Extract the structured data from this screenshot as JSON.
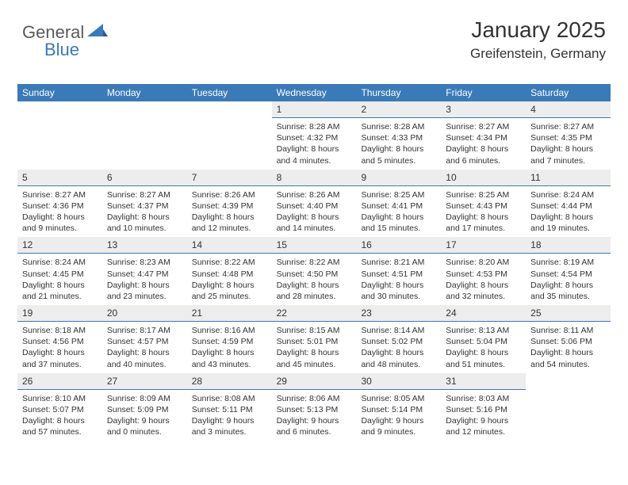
{
  "logo": {
    "general": "General",
    "blue": "Blue"
  },
  "header": {
    "month_title": "January 2025",
    "location": "Greifenstein, Germany"
  },
  "colors": {
    "header_bg": "#3b7ab8",
    "header_text": "#ffffff",
    "daynum_bg": "#ededed",
    "daynum_border": "#3b7ab8",
    "body_text": "#333333",
    "logo_gray": "#5a5a5a",
    "logo_blue": "#3b7ab8"
  },
  "day_headers": [
    "Sunday",
    "Monday",
    "Tuesday",
    "Wednesday",
    "Thursday",
    "Friday",
    "Saturday"
  ],
  "weeks": [
    [
      {
        "num": "",
        "sunrise": "",
        "sunset": "",
        "daylight": ""
      },
      {
        "num": "",
        "sunrise": "",
        "sunset": "",
        "daylight": ""
      },
      {
        "num": "",
        "sunrise": "",
        "sunset": "",
        "daylight": ""
      },
      {
        "num": "1",
        "sunrise": "Sunrise: 8:28 AM",
        "sunset": "Sunset: 4:32 PM",
        "daylight": "Daylight: 8 hours and 4 minutes."
      },
      {
        "num": "2",
        "sunrise": "Sunrise: 8:28 AM",
        "sunset": "Sunset: 4:33 PM",
        "daylight": "Daylight: 8 hours and 5 minutes."
      },
      {
        "num": "3",
        "sunrise": "Sunrise: 8:27 AM",
        "sunset": "Sunset: 4:34 PM",
        "daylight": "Daylight: 8 hours and 6 minutes."
      },
      {
        "num": "4",
        "sunrise": "Sunrise: 8:27 AM",
        "sunset": "Sunset: 4:35 PM",
        "daylight": "Daylight: 8 hours and 7 minutes."
      }
    ],
    [
      {
        "num": "5",
        "sunrise": "Sunrise: 8:27 AM",
        "sunset": "Sunset: 4:36 PM",
        "daylight": "Daylight: 8 hours and 9 minutes."
      },
      {
        "num": "6",
        "sunrise": "Sunrise: 8:27 AM",
        "sunset": "Sunset: 4:37 PM",
        "daylight": "Daylight: 8 hours and 10 minutes."
      },
      {
        "num": "7",
        "sunrise": "Sunrise: 8:26 AM",
        "sunset": "Sunset: 4:39 PM",
        "daylight": "Daylight: 8 hours and 12 minutes."
      },
      {
        "num": "8",
        "sunrise": "Sunrise: 8:26 AM",
        "sunset": "Sunset: 4:40 PM",
        "daylight": "Daylight: 8 hours and 14 minutes."
      },
      {
        "num": "9",
        "sunrise": "Sunrise: 8:25 AM",
        "sunset": "Sunset: 4:41 PM",
        "daylight": "Daylight: 8 hours and 15 minutes."
      },
      {
        "num": "10",
        "sunrise": "Sunrise: 8:25 AM",
        "sunset": "Sunset: 4:43 PM",
        "daylight": "Daylight: 8 hours and 17 minutes."
      },
      {
        "num": "11",
        "sunrise": "Sunrise: 8:24 AM",
        "sunset": "Sunset: 4:44 PM",
        "daylight": "Daylight: 8 hours and 19 minutes."
      }
    ],
    [
      {
        "num": "12",
        "sunrise": "Sunrise: 8:24 AM",
        "sunset": "Sunset: 4:45 PM",
        "daylight": "Daylight: 8 hours and 21 minutes."
      },
      {
        "num": "13",
        "sunrise": "Sunrise: 8:23 AM",
        "sunset": "Sunset: 4:47 PM",
        "daylight": "Daylight: 8 hours and 23 minutes."
      },
      {
        "num": "14",
        "sunrise": "Sunrise: 8:22 AM",
        "sunset": "Sunset: 4:48 PM",
        "daylight": "Daylight: 8 hours and 25 minutes."
      },
      {
        "num": "15",
        "sunrise": "Sunrise: 8:22 AM",
        "sunset": "Sunset: 4:50 PM",
        "daylight": "Daylight: 8 hours and 28 minutes."
      },
      {
        "num": "16",
        "sunrise": "Sunrise: 8:21 AM",
        "sunset": "Sunset: 4:51 PM",
        "daylight": "Daylight: 8 hours and 30 minutes."
      },
      {
        "num": "17",
        "sunrise": "Sunrise: 8:20 AM",
        "sunset": "Sunset: 4:53 PM",
        "daylight": "Daylight: 8 hours and 32 minutes."
      },
      {
        "num": "18",
        "sunrise": "Sunrise: 8:19 AM",
        "sunset": "Sunset: 4:54 PM",
        "daylight": "Daylight: 8 hours and 35 minutes."
      }
    ],
    [
      {
        "num": "19",
        "sunrise": "Sunrise: 8:18 AM",
        "sunset": "Sunset: 4:56 PM",
        "daylight": "Daylight: 8 hours and 37 minutes."
      },
      {
        "num": "20",
        "sunrise": "Sunrise: 8:17 AM",
        "sunset": "Sunset: 4:57 PM",
        "daylight": "Daylight: 8 hours and 40 minutes."
      },
      {
        "num": "21",
        "sunrise": "Sunrise: 8:16 AM",
        "sunset": "Sunset: 4:59 PM",
        "daylight": "Daylight: 8 hours and 43 minutes."
      },
      {
        "num": "22",
        "sunrise": "Sunrise: 8:15 AM",
        "sunset": "Sunset: 5:01 PM",
        "daylight": "Daylight: 8 hours and 45 minutes."
      },
      {
        "num": "23",
        "sunrise": "Sunrise: 8:14 AM",
        "sunset": "Sunset: 5:02 PM",
        "daylight": "Daylight: 8 hours and 48 minutes."
      },
      {
        "num": "24",
        "sunrise": "Sunrise: 8:13 AM",
        "sunset": "Sunset: 5:04 PM",
        "daylight": "Daylight: 8 hours and 51 minutes."
      },
      {
        "num": "25",
        "sunrise": "Sunrise: 8:11 AM",
        "sunset": "Sunset: 5:06 PM",
        "daylight": "Daylight: 8 hours and 54 minutes."
      }
    ],
    [
      {
        "num": "26",
        "sunrise": "Sunrise: 8:10 AM",
        "sunset": "Sunset: 5:07 PM",
        "daylight": "Daylight: 8 hours and 57 minutes."
      },
      {
        "num": "27",
        "sunrise": "Sunrise: 8:09 AM",
        "sunset": "Sunset: 5:09 PM",
        "daylight": "Daylight: 9 hours and 0 minutes."
      },
      {
        "num": "28",
        "sunrise": "Sunrise: 8:08 AM",
        "sunset": "Sunset: 5:11 PM",
        "daylight": "Daylight: 9 hours and 3 minutes."
      },
      {
        "num": "29",
        "sunrise": "Sunrise: 8:06 AM",
        "sunset": "Sunset: 5:13 PM",
        "daylight": "Daylight: 9 hours and 6 minutes."
      },
      {
        "num": "30",
        "sunrise": "Sunrise: 8:05 AM",
        "sunset": "Sunset: 5:14 PM",
        "daylight": "Daylight: 9 hours and 9 minutes."
      },
      {
        "num": "31",
        "sunrise": "Sunrise: 8:03 AM",
        "sunset": "Sunset: 5:16 PM",
        "daylight": "Daylight: 9 hours and 12 minutes."
      },
      {
        "num": "",
        "sunrise": "",
        "sunset": "",
        "daylight": ""
      }
    ]
  ]
}
